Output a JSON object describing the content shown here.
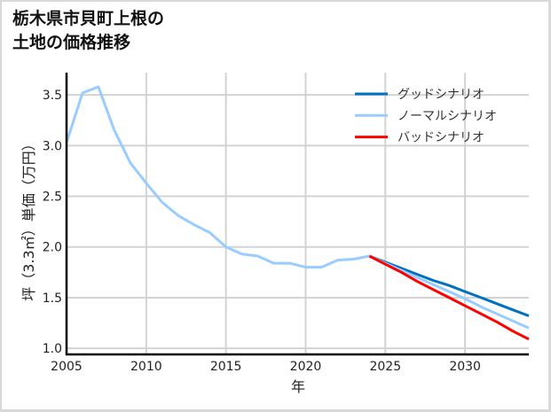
{
  "title": {
    "line1": "栃木県市貝町上根の",
    "line2": "土地の価格推移"
  },
  "colors": {
    "good": "#0070C0",
    "normal": "#99CCFF",
    "bad": "#FF0000",
    "grid": "#d3d3d3",
    "axis": "#000000"
  },
  "chart_data": {
    "type": "line",
    "title": "栃木県市貝町上根の土地の価格推移",
    "xlabel": "年",
    "ylabel": "坪（3.3㎡）単価（万円）",
    "xlim": [
      2005,
      2034
    ],
    "ylim": [
      0.94,
      3.72
    ],
    "grid": true,
    "legend_position": "upper right",
    "x_ticks": [
      2005,
      2010,
      2015,
      2020,
      2025,
      2030
    ],
    "x_tick_labels": [
      "2005",
      "2010",
      "2015",
      "2020",
      "2025",
      "2030"
    ],
    "y_ticks": [
      1.0,
      1.5,
      2.0,
      2.5,
      3.0,
      3.5
    ],
    "y_tick_labels": [
      "1.0",
      "1.5",
      "2.0",
      "2.5",
      "3.0",
      "3.5"
    ],
    "series": [
      {
        "key": "normal_history",
        "name": "ノーマルシナリオ",
        "color_key": "normal",
        "in_legend": false,
        "x": [
          2005,
          2006,
          2007,
          2008,
          2009,
          2010,
          2011,
          2012,
          2013,
          2014,
          2015,
          2016,
          2017,
          2018,
          2019,
          2020,
          2021,
          2022,
          2023,
          2024
        ],
        "values": [
          3.03,
          3.52,
          3.58,
          3.15,
          2.83,
          2.63,
          2.44,
          2.31,
          2.22,
          2.14,
          2.0,
          1.93,
          1.91,
          1.84,
          1.84,
          1.8,
          1.8,
          1.87,
          1.88,
          1.91
        ]
      },
      {
        "key": "good",
        "name": "グッドシナリオ",
        "color_key": "good",
        "in_legend": true,
        "x": [
          2024,
          2025,
          2026,
          2027,
          2028,
          2029,
          2030,
          2031,
          2032,
          2033,
          2034
        ],
        "values": [
          1.91,
          1.85,
          1.79,
          1.73,
          1.67,
          1.62,
          1.56,
          1.5,
          1.44,
          1.38,
          1.32
        ]
      },
      {
        "key": "normal",
        "name": "ノーマルシナリオ",
        "color_key": "normal",
        "in_legend": true,
        "x": [
          2024,
          2025,
          2026,
          2027,
          2028,
          2029,
          2030,
          2031,
          2032,
          2033,
          2034
        ],
        "values": [
          1.91,
          1.84,
          1.77,
          1.7,
          1.63,
          1.56,
          1.49,
          1.41,
          1.34,
          1.27,
          1.2
        ]
      },
      {
        "key": "bad",
        "name": "バッドシナリオ",
        "color_key": "bad",
        "in_legend": true,
        "x": [
          2024,
          2025,
          2026,
          2027,
          2028,
          2029,
          2030,
          2031,
          2032,
          2033,
          2034
        ],
        "values": [
          1.91,
          1.83,
          1.75,
          1.66,
          1.58,
          1.5,
          1.42,
          1.34,
          1.26,
          1.17,
          1.09
        ]
      }
    ],
    "legend": [
      {
        "label": "グッドシナリオ",
        "color_key": "good"
      },
      {
        "label": "ノーマルシナリオ",
        "color_key": "normal"
      },
      {
        "label": "バッドシナリオ",
        "color_key": "bad"
      }
    ]
  }
}
